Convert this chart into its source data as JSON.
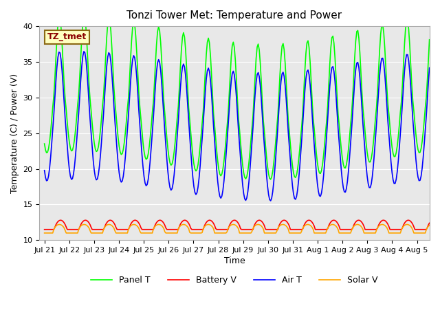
{
  "title": "Tonzi Tower Met: Temperature and Power",
  "xlabel": "Time",
  "ylabel": "Temperature (C) / Power (V)",
  "annotation": "TZ_tmet",
  "ylim": [
    10,
    40
  ],
  "xlim_days": 15.5,
  "x_tick_labels": [
    "Jul 21",
    "Jul 22",
    "Jul 23",
    "Jul 24",
    "Jul 25",
    "Jul 26",
    "Jul 27",
    "Jul 28",
    "Jul 29",
    "Jul 30",
    "Jul 31",
    "Aug 1",
    "Aug 2",
    "Aug 3",
    "Aug 4",
    "Aug 5"
  ],
  "legend_labels": [
    "Panel T",
    "Battery V",
    "Air T",
    "Solar V"
  ],
  "colors": {
    "panel_t": "#00FF00",
    "battery_v": "#FF0000",
    "air_t": "#0000FF",
    "solar_v": "#FFA500"
  },
  "plot_bg": "#E8E8E8",
  "fig_bg": "#FFFFFF",
  "linewidth": 1.2,
  "title_fontsize": 11,
  "axis_fontsize": 9,
  "tick_fontsize": 8
}
